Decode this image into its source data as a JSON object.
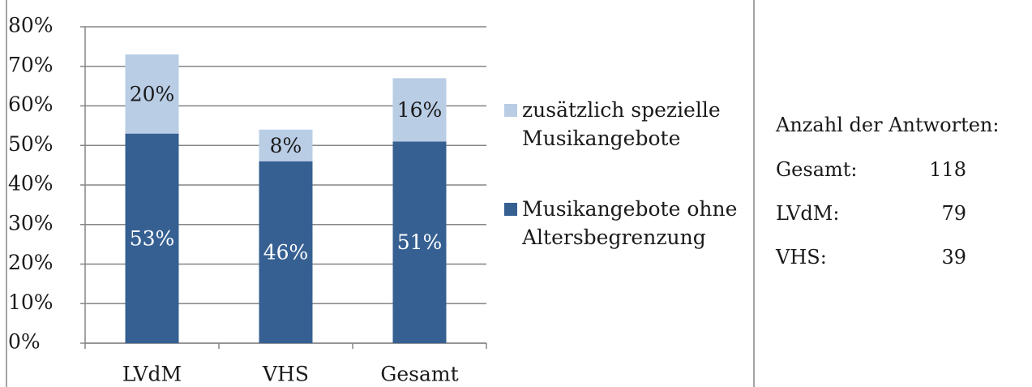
{
  "chart_data": {
    "type": "stacked_bar",
    "categories": [
      "LVdM",
      "VHS",
      "Gesamt"
    ],
    "series": [
      {
        "name": "Musikangebote ohne Altersbegrenzung",
        "color": "#366092",
        "label_color": "#ffffff",
        "values": [
          53,
          46,
          51
        ],
        "value_labels": [
          "53%",
          "46%",
          "51%"
        ]
      },
      {
        "name": "zusätzlich spezielle Musikangebote",
        "color": "#b9cde5",
        "label_color": "#1a1a1a",
        "values": [
          20,
          8,
          16
        ],
        "value_labels": [
          "20%",
          "8%",
          "16%"
        ]
      }
    ],
    "ylim": [
      0,
      80
    ],
    "yticks": [
      {
        "value": 0,
        "label": "0%"
      },
      {
        "value": 10,
        "label": "10%"
      },
      {
        "value": 20,
        "label": "20%"
      },
      {
        "value": 30,
        "label": "30%"
      },
      {
        "value": 40,
        "label": "40%"
      },
      {
        "value": 50,
        "label": "50%"
      },
      {
        "value": 60,
        "label": "60%"
      },
      {
        "value": 70,
        "label": "70%"
      },
      {
        "value": 80,
        "label": "80%"
      }
    ],
    "grid": true,
    "legend": "right"
  },
  "responses": {
    "title": "Anzahl der Antworten:",
    "rows": [
      {
        "label": "Gesamt:",
        "value": "118"
      },
      {
        "label": "LVdM:",
        "value": "79"
      },
      {
        "label": "VHS:",
        "value": "39"
      }
    ]
  }
}
